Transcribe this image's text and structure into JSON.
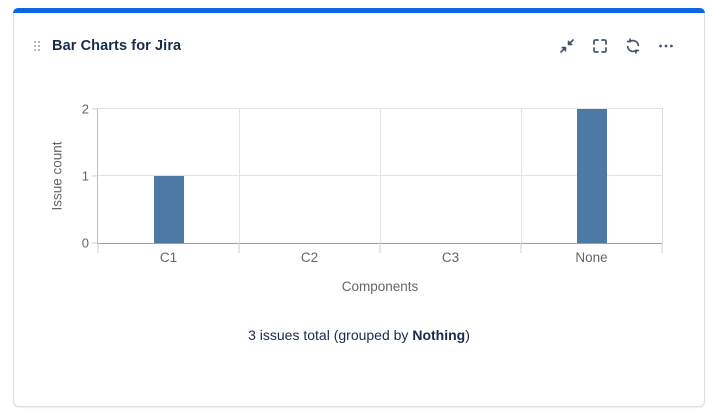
{
  "card": {
    "title": "Bar Charts for Jira",
    "accent_color": "#0C66E4",
    "toolbar_icons": [
      "collapse-icon",
      "fullscreen-icon",
      "refresh-icon",
      "more-icon"
    ]
  },
  "chart_data": {
    "type": "bar",
    "categories": [
      "C1",
      "C2",
      "C3",
      "None"
    ],
    "values": [
      1,
      0,
      0,
      2
    ],
    "title": "",
    "xlabel": "Components",
    "ylabel": "Issue count",
    "ylim": [
      0,
      2
    ],
    "yticks": [
      0,
      1,
      2
    ],
    "grid": true,
    "legend": "none",
    "bar_color": "#4D79A7"
  },
  "footer": {
    "prefix": "3 issues total (grouped by ",
    "bold": "Nothing",
    "suffix": ")"
  },
  "colors": {
    "accent": "#0C66E4",
    "card_border": "#DCDFE4",
    "title_text": "#172B4D",
    "icon": "#44546F",
    "axis_text": "#666666",
    "gridline": "#E4E4E4",
    "baseline": "#9E9E9E",
    "bar": "#4D79A7"
  }
}
